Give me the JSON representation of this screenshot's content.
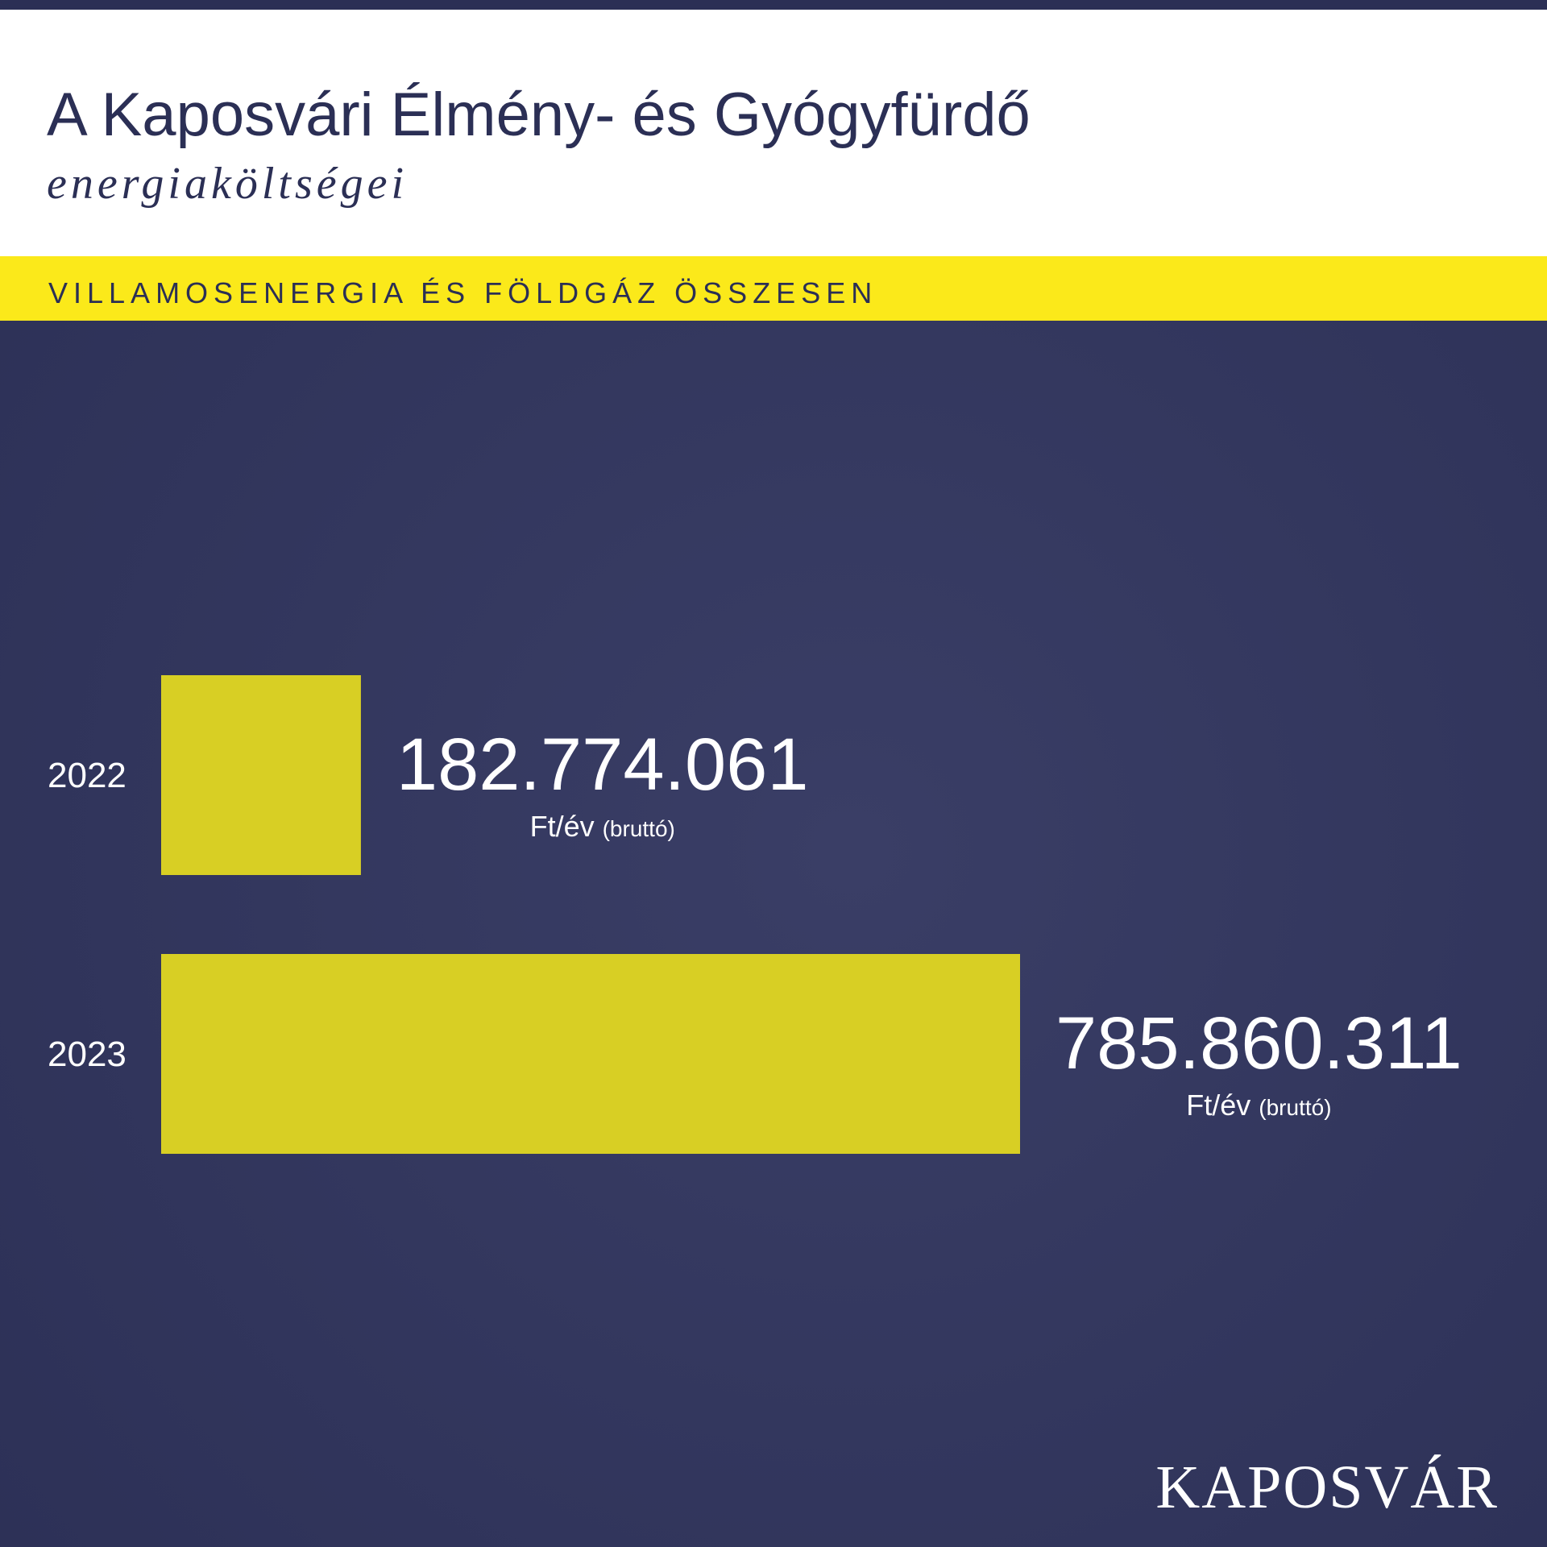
{
  "header": {
    "title": "A Kaposvári Élmény- és Gyógyfürdő",
    "subtitle": "energiaköltségei",
    "section": "VILLAMOSENERGIA ÉS FÖLDGÁZ ÖSSZESEN"
  },
  "chart_data": {
    "type": "bar",
    "orientation": "horizontal",
    "categories": [
      "2022",
      "2023"
    ],
    "values": [
      182774061,
      785860311
    ],
    "value_labels": [
      "182.774.061",
      "785.860.311"
    ],
    "unit": "Ft/év",
    "unit_note": "(bruttó)",
    "color": "#d8cf24"
  },
  "footer": {
    "logo": "KAPOSVÁR"
  }
}
